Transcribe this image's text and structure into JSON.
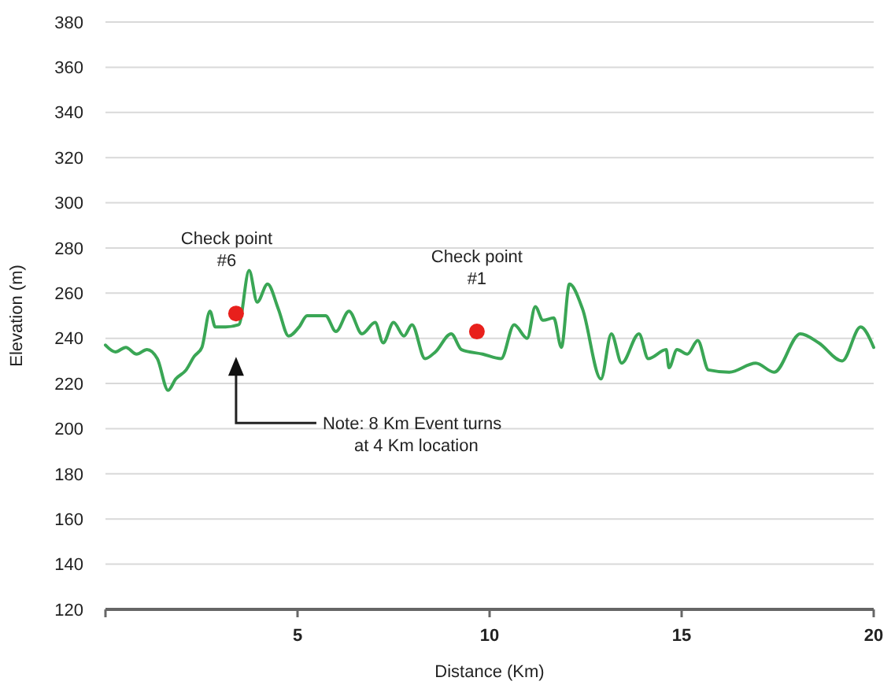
{
  "chart_data": {
    "type": "line",
    "xlabel": "Distance (Km)",
    "ylabel": "Elevation (m)",
    "xlim": [
      0,
      20
    ],
    "xticks": [
      {
        "value": 0,
        "label": null
      },
      5,
      10,
      15,
      20
    ],
    "ylim": [
      120,
      380
    ],
    "yticks": [
      120,
      140,
      160,
      180,
      200,
      220,
      240,
      260,
      280,
      300,
      320,
      340,
      360,
      380
    ],
    "grid": "y",
    "tick_labels": "xy",
    "series": [
      {
        "color": "#3aa655",
        "marker": "none",
        "x": [
          0,
          0.26,
          0.53,
          0.81,
          1.08,
          1.35,
          1.63,
          1.83,
          2.1,
          2.31,
          2.51,
          2.72,
          2.86,
          3.13,
          3.47,
          3.74,
          3.95,
          4.22,
          4.5,
          4.77,
          5.04,
          5.25,
          5.73,
          6.0,
          6.34,
          6.68,
          7.02,
          7.23,
          7.5,
          7.77,
          7.98,
          8.32,
          8.59,
          9.0,
          9.27,
          9.82,
          10.3,
          10.64,
          10.98,
          11.19,
          11.39,
          11.67,
          11.87,
          12.08,
          12.42,
          12.9,
          13.17,
          13.44,
          13.89,
          14.13,
          14.6,
          14.67,
          14.88,
          15.15,
          15.42,
          15.7,
          16.24,
          16.93,
          17.41,
          18.09,
          18.57,
          19.18,
          19.66,
          20
        ],
        "values": [
          237,
          234,
          236,
          233,
          235,
          231,
          217,
          222,
          226,
          232,
          236,
          252,
          245,
          245,
          246,
          270,
          256,
          264,
          253,
          241,
          245,
          250,
          250,
          243,
          252,
          242,
          247,
          238,
          247,
          241,
          246,
          231,
          234,
          242,
          235,
          233,
          231,
          246,
          240,
          254,
          248,
          249,
          236,
          264,
          253,
          222,
          242,
          229,
          242,
          231,
          235,
          227,
          235,
          233,
          239,
          226,
          225,
          229,
          225,
          242,
          238,
          230,
          245,
          236
        ]
      },
      {
        "type": "scatter",
        "color": "#e8201c",
        "marker": "circle",
        "x": [
          3.4,
          9.67
        ],
        "values": [
          251,
          243
        ]
      }
    ],
    "annotations": [
      {
        "text": "Check point #6",
        "x": 3.4,
        "y": 251
      },
      {
        "text": "Check point #1",
        "x": 9.67,
        "y": 243
      },
      "Note: 8 Km Event turns at 4 Km location"
    ]
  }
}
